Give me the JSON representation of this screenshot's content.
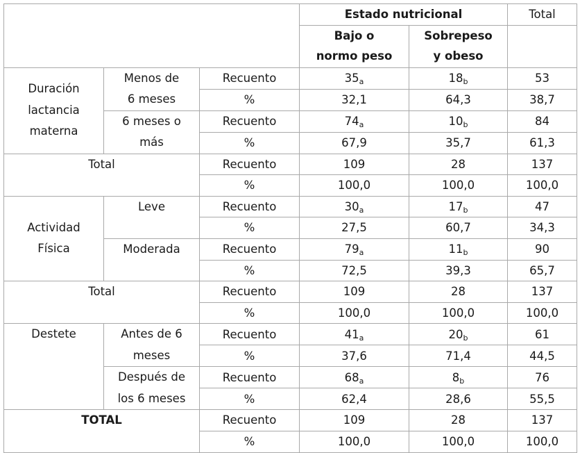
{
  "header": {
    "group_label": "Estado nutricional",
    "total_label": "Total",
    "col1_line1": "Bajo o",
    "col1_line2": "normo peso",
    "col2_line1": "Sobrepeso",
    "col2_line2": "y obeso"
  },
  "labels": {
    "count": "Recuento",
    "percent": "%"
  },
  "sections": {
    "lactancia": {
      "title_line1": "Duración",
      "title_line2": "lactancia",
      "title_line3": "materna",
      "sub1_line1": "Menos de",
      "sub1_line2": "6 meses",
      "sub2_line1": "6 meses o",
      "sub2_line2": "más",
      "r1": {
        "c1": "35",
        "c1_sub": "a",
        "c2": "18",
        "c2_sub": "b",
        "total": "53"
      },
      "r2": {
        "c1": "32,1",
        "c2": "64,3",
        "total": "38,7"
      },
      "r3": {
        "c1": "74",
        "c1_sub": "a",
        "c2": "10",
        "c2_sub": "b",
        "total": "84"
      },
      "r4": {
        "c1": "67,9",
        "c2": "35,7",
        "total": "61,3"
      }
    },
    "total1": {
      "title": "Total",
      "r1": {
        "c1": "109",
        "c2": "28",
        "total": "137"
      },
      "r2": {
        "c1": "100,0",
        "c2": "100,0",
        "total": "100,0"
      }
    },
    "actividad": {
      "title_line1": "Actividad",
      "title_line2": "Física",
      "sub1": "Leve",
      "sub2": "Moderada",
      "r1": {
        "c1": "30",
        "c1_sub": "a",
        "c2": "17",
        "c2_sub": "b",
        "total": "47"
      },
      "r2": {
        "c1": "27,5",
        "c2": "60,7",
        "total": "34,3"
      },
      "r3": {
        "c1": "79",
        "c1_sub": "a",
        "c2": "11",
        "c2_sub": "b",
        "total": "90"
      },
      "r4": {
        "c1": "72,5",
        "c2": "39,3",
        "total": "65,7"
      }
    },
    "total2": {
      "title": "Total",
      "r1": {
        "c1": "109",
        "c2": "28",
        "total": "137"
      },
      "r2": {
        "c1": "100,0",
        "c2": "100,0",
        "total": "100,0"
      }
    },
    "destete": {
      "title": "Destete",
      "sub1_line1": "Antes de 6",
      "sub1_line2": "meses",
      "sub2_line1": "Después de",
      "sub2_line2": "los 6 meses",
      "r1": {
        "c1": "41",
        "c1_sub": "a",
        "c2": "20",
        "c2_sub": "b",
        "total": "61"
      },
      "r2": {
        "c1": "37,6",
        "c2": "71,4",
        "total": "44,5"
      },
      "r3": {
        "c1": "68",
        "c1_sub": "a",
        "c2": "8",
        "c2_sub": "b",
        "total": "76"
      },
      "r4": {
        "c1": "62,4",
        "c2": "28,6",
        "total": "55,5"
      }
    },
    "grand_total": {
      "title": "TOTAL",
      "r1": {
        "c1": "109",
        "c2": "28",
        "total": "137"
      },
      "r2": {
        "c1": "100,0",
        "c2": "100,0",
        "total": "100,0"
      }
    }
  }
}
